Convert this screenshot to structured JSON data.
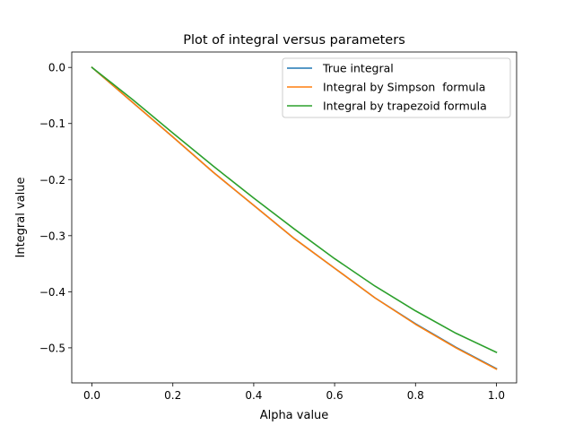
{
  "chart_data": {
    "type": "line",
    "title": "Plot of integral versus parameters",
    "xlabel": "Alpha value",
    "ylabel": "Integral value",
    "xlim": [
      -0.05,
      1.05
    ],
    "ylim": [
      -0.5625,
      0.0275
    ],
    "xticks": [
      0.0,
      0.2,
      0.4,
      0.6,
      0.8,
      1.0
    ],
    "xtick_labels": [
      "0.0",
      "0.2",
      "0.4",
      "0.6",
      "0.8",
      "1.0"
    ],
    "yticks": [
      0.0,
      -0.1,
      -0.2,
      -0.3,
      -0.4,
      -0.5
    ],
    "ytick_labels": [
      "0.0",
      "−0.1",
      "−0.2",
      "−0.3",
      "−0.4",
      "−0.5"
    ],
    "grid": false,
    "legend_position": "top-right",
    "x": [
      0.0,
      0.1,
      0.2,
      0.3,
      0.4,
      0.5,
      0.6,
      0.7,
      0.8,
      0.9,
      1.0
    ],
    "series": [
      {
        "name": "True integral",
        "color": "#1f77b4",
        "values": [
          0.0,
          -0.062,
          -0.124,
          -0.187,
          -0.246,
          -0.305,
          -0.358,
          -0.411,
          -0.457,
          -0.499,
          -0.537
        ]
      },
      {
        "name": "Integral by Simpson  formula",
        "color": "#ff7f0e",
        "values": [
          0.0,
          -0.062,
          -0.124,
          -0.187,
          -0.246,
          -0.305,
          -0.358,
          -0.411,
          -0.458,
          -0.5,
          -0.538
        ]
      },
      {
        "name": "Integral by trapezoid formula",
        "color": "#2ca02c",
        "values": [
          0.0,
          -0.057,
          -0.117,
          -0.176,
          -0.233,
          -0.288,
          -0.341,
          -0.39,
          -0.434,
          -0.474,
          -0.508
        ]
      }
    ]
  }
}
